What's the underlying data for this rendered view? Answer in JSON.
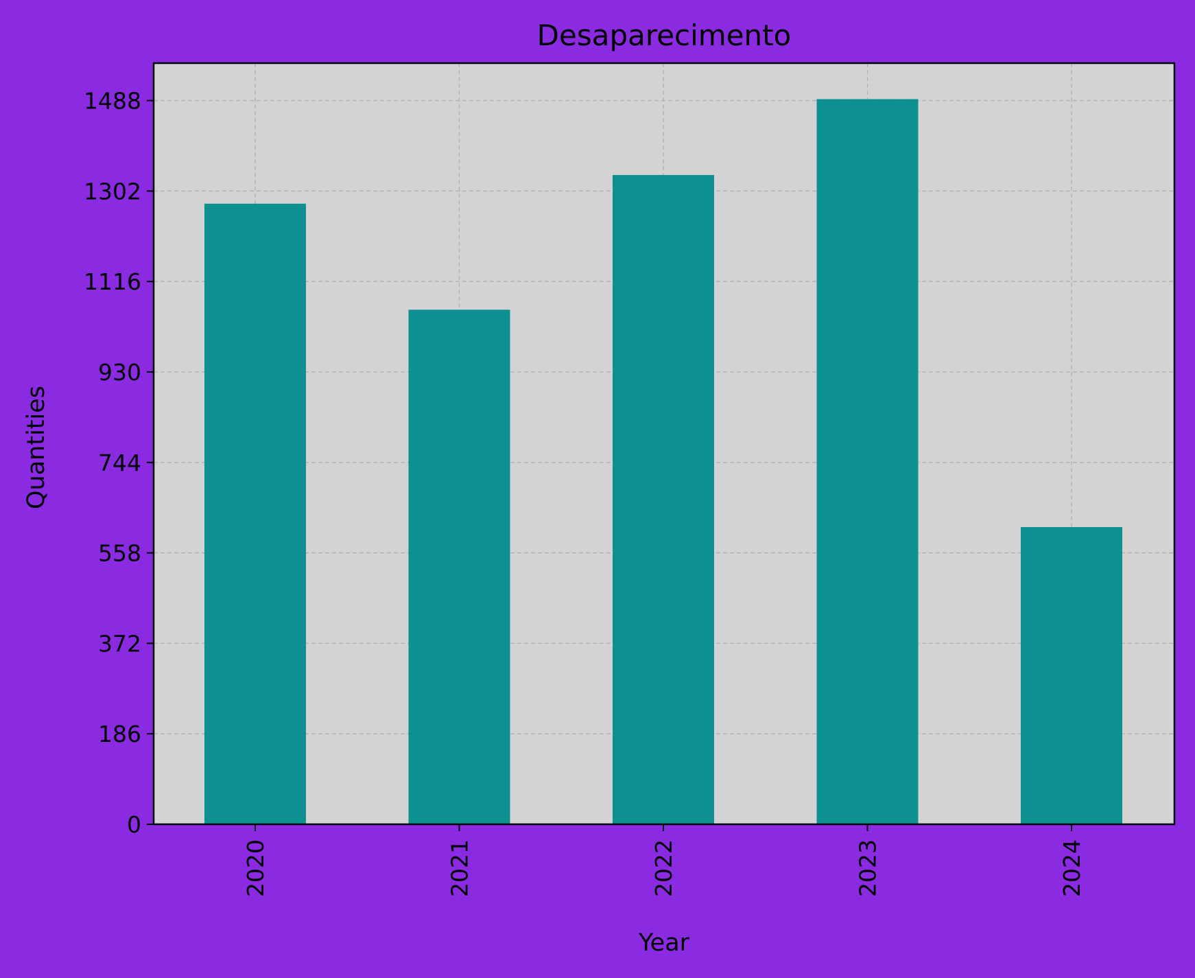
{
  "chart_data": {
    "type": "bar",
    "title": "Desaparecimento",
    "xlabel": "Year",
    "ylabel": "Quantities",
    "categories": [
      "2020",
      "2021",
      "2022",
      "2023",
      "2024"
    ],
    "values": [
      1276,
      1058,
      1335,
      1491,
      611
    ],
    "y_ticks": [
      0,
      186,
      372,
      558,
      744,
      930,
      1116,
      1302,
      1488
    ],
    "y_tick_labels": [
      "0",
      "186",
      "372",
      "558",
      "744",
      "930",
      "1116",
      "1302",
      "1488"
    ],
    "ylim": [
      0,
      1565
    ],
    "grid": true,
    "legend": "none",
    "colors": {
      "figure_background": "#8a2be2",
      "plot_background": "#d3d3d3",
      "bar": "#008b8b",
      "grid": "#b0b0b0",
      "axis": "#000000"
    }
  }
}
